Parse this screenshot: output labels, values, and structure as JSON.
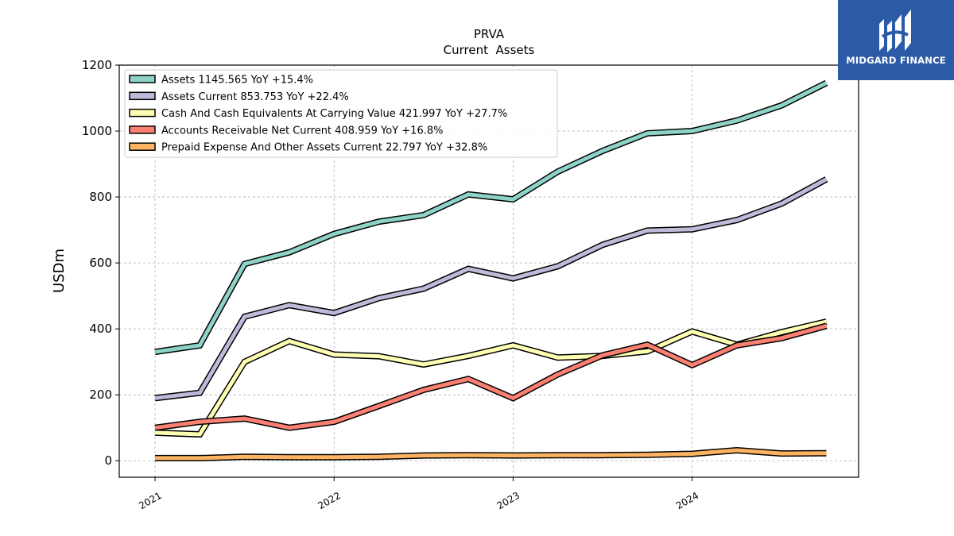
{
  "logo": {
    "text": "MIDGARD FINANCE",
    "icon": "midgard-m-logo",
    "background": "#2b5aa6"
  },
  "chart_data": {
    "type": "line",
    "title": "PRVA",
    "subtitle": "Current  Assets",
    "ylabel": "USDm",
    "xlabel": "",
    "ylim": [
      -50,
      1200
    ],
    "xlim": [
      2020.8,
      2024.93
    ],
    "yticks": [
      0,
      200,
      400,
      600,
      800,
      1000,
      1200
    ],
    "xticks": [
      2021,
      2022,
      2023,
      2024
    ],
    "grid": true,
    "legend_placement": "top-left",
    "x": [
      2021.0,
      2021.25,
      2021.5,
      2021.75,
      2022.0,
      2022.25,
      2022.5,
      2022.75,
      2023.0,
      2023.25,
      2023.5,
      2023.75,
      2024.0,
      2024.25,
      2024.5,
      2024.75
    ],
    "series": [
      {
        "name": "Assets",
        "legend_label": "Assets  1145.565 YoY +15.4%",
        "color": "#8dd3c7",
        "values": [
          330,
          350,
          597,
          632,
          688,
          725,
          745,
          808,
          793,
          877,
          940,
          993,
          1000,
          1032,
          1078,
          1146
        ]
      },
      {
        "name": "Assets Current",
        "legend_label": "Assets Current  853.753 YoY +22.4%",
        "color": "#bebada",
        "values": [
          190,
          206,
          437,
          472,
          448,
          493,
          522,
          582,
          553,
          590,
          655,
          698,
          702,
          730,
          780,
          854
        ]
      },
      {
        "name": "Cash And Cash Equivalents At Carrying Value",
        "legend_label": "Cash And Cash Equivalents At Carrying Value  421.997 YoY +27.7%",
        "color": "#ffffb3",
        "values": [
          85,
          80,
          300,
          363,
          322,
          317,
          292,
          318,
          350,
          313,
          318,
          332,
          392,
          352,
          390,
          422
        ]
      },
      {
        "name": "Accounts Receivable Net Current",
        "legend_label": "Accounts Receivable Net Current  408.959 YoY +16.8%",
        "color": "#fb8072",
        "values": [
          100,
          118,
          128,
          100,
          118,
          166,
          215,
          248,
          190,
          262,
          320,
          352,
          290,
          350,
          372,
          409
        ]
      },
      {
        "name": "Prepaid Expense And Other Assets Current",
        "legend_label": "Prepaid Expense And Other Assets Current  22.797 YoY +32.8%",
        "color": "#fdb462",
        "values": [
          8,
          8,
          12,
          11,
          11,
          12,
          16,
          17,
          16,
          17,
          17,
          18,
          21,
          32,
          22,
          23
        ]
      }
    ]
  }
}
